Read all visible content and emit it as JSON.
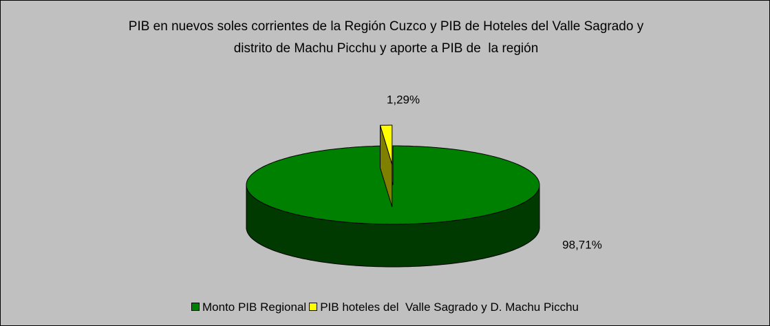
{
  "chart_data": {
    "type": "pie3d",
    "title": "PIB en nuevos soles corrientes de la Región Cuzco y PIB de Hoteles del Valle Sagrado y distrito de Machu Picchu y aporte a PIB de  la región",
    "categories": [
      "Monto PIB Regional",
      "PIB hoteles del  Valle Sagrado y D. Machu Picchu"
    ],
    "values": [
      98.71,
      1.29
    ],
    "value_labels": [
      "98,71%",
      "1,29%"
    ],
    "colors": [
      "#008000",
      "#ffff00"
    ],
    "legend": "bottom"
  }
}
